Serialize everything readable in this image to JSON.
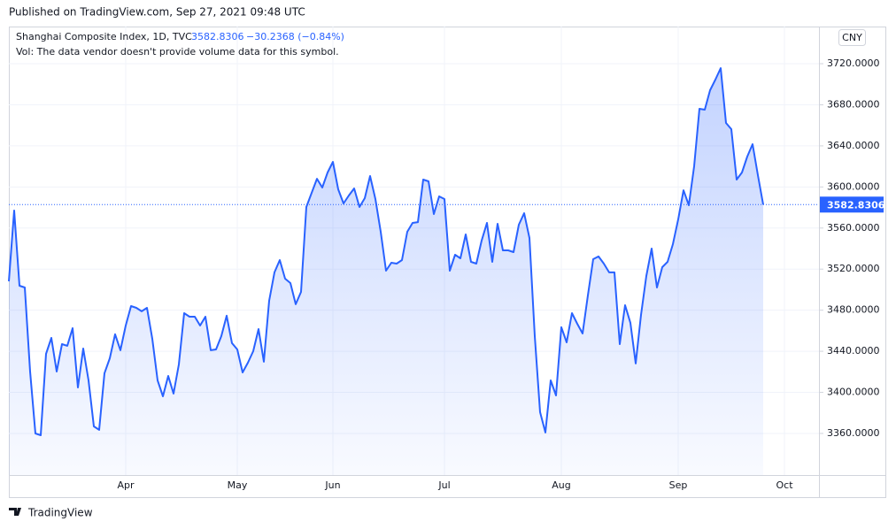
{
  "published": "Published on TradingView.com, Sep 27, 2021 09:48 UTC",
  "brand": "TradingView",
  "chart_data": {
    "type": "area",
    "title": "Shanghai Composite Index, 1D, TVC",
    "change_label": "−30.2368 (−0.84%)",
    "subtitle": "Vol: The data vendor doesn't provide volume data for this symbol.",
    "currency": "CNY",
    "color": "#2962ff",
    "grid": true,
    "categories": [
      null,
      null,
      null,
      null,
      null,
      null,
      null,
      null,
      null,
      null,
      null,
      null,
      null,
      null,
      null,
      null,
      null,
      null,
      null,
      null,
      null,
      null,
      "Apr",
      null,
      null,
      null,
      null,
      null,
      null,
      null,
      null,
      null,
      null,
      null,
      null,
      null,
      null,
      null,
      null,
      null,
      null,
      null,
      null,
      "May",
      null,
      null,
      null,
      null,
      null,
      null,
      null,
      null,
      null,
      null,
      null,
      null,
      null,
      null,
      null,
      null,
      null,
      "Jun",
      null,
      null,
      null,
      null,
      null,
      null,
      null,
      null,
      null,
      null,
      null,
      null,
      null,
      null,
      null,
      null,
      null,
      null,
      null,
      null,
      "Jul",
      null,
      null,
      null,
      null,
      null,
      null,
      null,
      null,
      null,
      null,
      null,
      null,
      null,
      null,
      null,
      null,
      null,
      null,
      null,
      null,
      null,
      "Aug",
      null,
      null,
      null,
      null,
      null,
      null,
      null,
      null,
      null,
      null,
      null,
      null,
      null,
      null,
      null,
      null,
      null,
      null,
      null,
      null,
      null,
      "Sep",
      null,
      null,
      null,
      null,
      null,
      null,
      null,
      null,
      null,
      null,
      null,
      null,
      null,
      null,
      null,
      null,
      null,
      null,
      null,
      "Oct"
    ],
    "values": [
      3508.1,
      3577.0,
      3503.8,
      3502.1,
      3420.3,
      3360.0,
      3358.3,
      3437.5,
      3453.0,
      3420.3,
      3447.0,
      3445.3,
      3462.5,
      3404.8,
      3442.7,
      3411.7,
      3366.9,
      3363.5,
      3418.6,
      3433.2,
      3456.5,
      3441.0,
      3465.1,
      3484.0,
      3482.3,
      3478.9,
      3482.3,
      3452.2,
      3411.7,
      3396.2,
      3416.0,
      3398.8,
      3427.2,
      3477.1,
      3473.7,
      3473.7,
      3465.1,
      3473.7,
      3441.0,
      3441.8,
      3454.8,
      3474.6,
      3447.9,
      3441.8,
      3419.4,
      3428.9,
      3440.1,
      3461.6,
      3429.8,
      3489.2,
      3516.8,
      3528.8,
      3510.7,
      3506.4,
      3485.8,
      3497.8,
      3580.5,
      3594.3,
      3608.0,
      3599.4,
      3614.1,
      3624.4,
      3597.7,
      3583.9,
      3591.7,
      3598.6,
      3580.5,
      3589.1,
      3610.6,
      3588.2,
      3556.4,
      3518.5,
      3526.2,
      3525.4,
      3528.8,
      3556.4,
      3565.0,
      3565.8,
      3607.2,
      3605.5,
      3573.6,
      3590.8,
      3588.2,
      3518.5,
      3534.0,
      3530.5,
      3553.8,
      3527.1,
      3525.4,
      3547.8,
      3565.0,
      3527.1,
      3564.1,
      3538.3,
      3538.3,
      3536.6,
      3563.3,
      3574.5,
      3550.3,
      3454.8,
      3380.7,
      3360.9,
      3411.7,
      3397.0,
      3463.4,
      3448.7,
      3477.1,
      3466.8,
      3457.3,
      3494.4,
      3529.7,
      3532.3,
      3525.4,
      3516.8,
      3516.8,
      3447.0,
      3484.9,
      3467.7,
      3428.1,
      3475.4,
      3513.3,
      3540.0,
      3502.1,
      3521.9,
      3527.1,
      3544.3,
      3568.4,
      3596.8,
      3582.2,
      3620.1,
      3676.1,
      3675.2,
      3694.2,
      3704.5,
      3715.7,
      3662.3,
      3656.3,
      3607.2,
      3614.1,
      3629.6,
      3641.6,
      3611.5,
      3582.8306,
      null,
      null,
      null,
      null
    ],
    "ylim": [
      3319.5,
      3756.2
    ],
    "yticks": [
      {
        "value": 3360,
        "label": "3360.0000"
      },
      {
        "value": 3400,
        "label": "3400.0000"
      },
      {
        "value": 3440,
        "label": "3440.0000"
      },
      {
        "value": 3480,
        "label": "3480.0000"
      },
      {
        "value": 3520,
        "label": "3520.0000"
      },
      {
        "value": 3560,
        "label": "3560.0000"
      },
      {
        "value": 3600,
        "label": "3600.0000"
      },
      {
        "value": 3640,
        "label": "3640.0000"
      },
      {
        "value": 3680,
        "label": "3680.0000"
      },
      {
        "value": 3720,
        "label": "3720.0000"
      }
    ]
  }
}
